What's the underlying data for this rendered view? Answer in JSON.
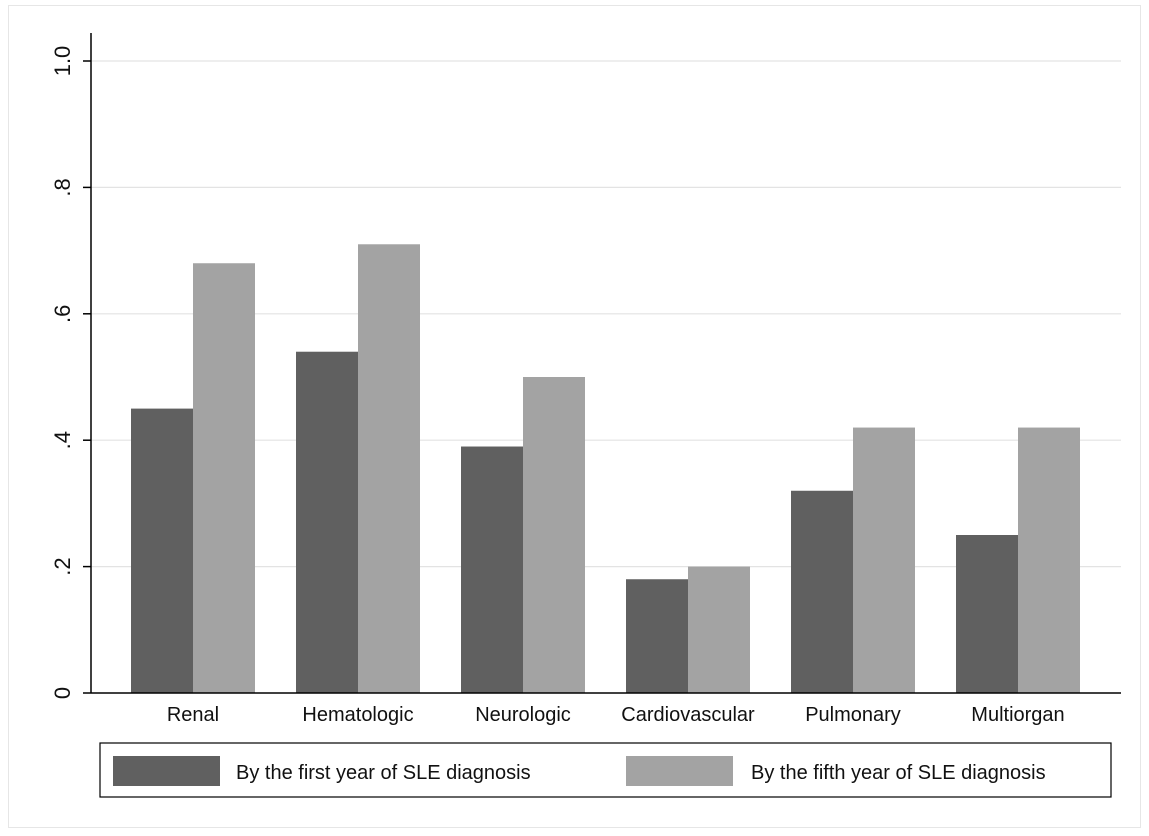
{
  "chart_data": {
    "type": "bar",
    "categories": [
      "Renal",
      "Hematologic",
      "Neurologic",
      "Cardiovascular",
      "Pulmonary",
      "Multiorgan"
    ],
    "series": [
      {
        "name": "By the first year of SLE diagnosis",
        "values": [
          0.45,
          0.54,
          0.39,
          0.18,
          0.32,
          0.25
        ],
        "color": "#606060"
      },
      {
        "name": "By the fifth year of SLE diagnosis",
        "values": [
          0.68,
          0.71,
          0.5,
          0.2,
          0.42,
          0.42
        ],
        "color": "#a3a3a3"
      }
    ],
    "ylim": [
      0,
      1.0
    ],
    "yticks": [
      0,
      0.2,
      0.4,
      0.6,
      0.8,
      1.0
    ],
    "ytick_labels": [
      "0",
      ".2",
      ".4",
      ".6",
      ".8",
      "1.0"
    ],
    "grid": true,
    "legend_position": "bottom",
    "title": "",
    "xlabel": "",
    "ylabel": ""
  }
}
